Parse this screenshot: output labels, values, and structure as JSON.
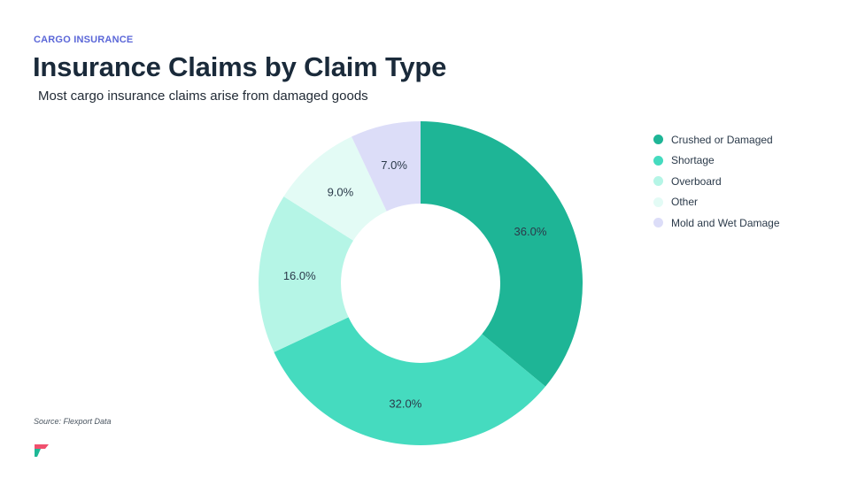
{
  "header": {
    "eyebrow": "CARGO INSURANCE",
    "title": "Insurance Claims by Claim Type",
    "subtitle": "Most cargo insurance claims arise from damaged goods"
  },
  "footer": {
    "source": "Source: Flexport Data"
  },
  "brand": {
    "logo_icon": "flexport-logo-icon",
    "colors": [
      "#f0506e",
      "#1eb896"
    ]
  },
  "chart_data": {
    "type": "pie",
    "variant": "donut",
    "title": "Insurance Claims by Claim Type",
    "legend_position": "right",
    "slices": [
      {
        "name": "Crushed or Damaged",
        "value": 36.0,
        "label": "36.0%",
        "color": "#1eb596"
      },
      {
        "name": "Shortage",
        "value": 32.0,
        "label": "32.0%",
        "color": "#45dbbf"
      },
      {
        "name": "Overboard",
        "value": 16.0,
        "label": "16.0%",
        "color": "#b5f5e6"
      },
      {
        "name": "Other",
        "value": 9.0,
        "label": "9.0%",
        "color": "#e3fbf5"
      },
      {
        "name": "Mold and Wet Damage",
        "value": 7.0,
        "label": "7.0%",
        "color": "#dcddf8"
      }
    ]
  }
}
